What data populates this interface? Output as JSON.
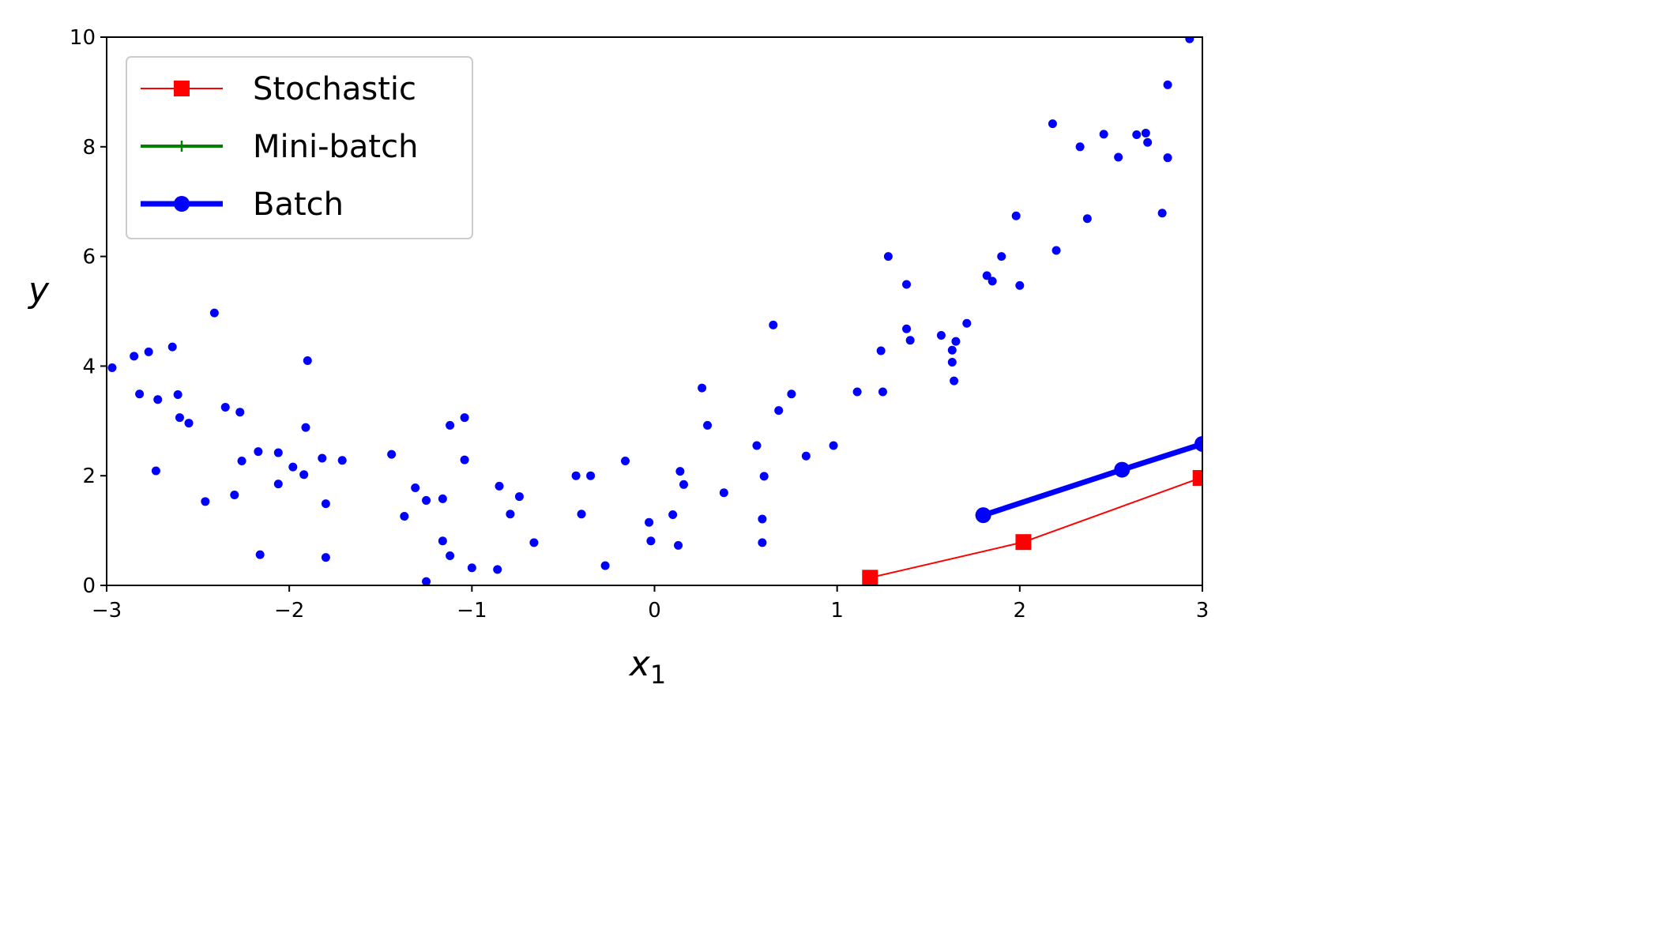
{
  "chart_data": {
    "type": "scatter",
    "title": "",
    "xlabel": "x",
    "xlabel_subscript": "1",
    "ylabel": "y",
    "xlim": [
      -3,
      3
    ],
    "ylim": [
      0,
      10
    ],
    "x_ticks": [
      -3,
      -2,
      -1,
      0,
      1,
      2,
      3
    ],
    "x_tick_labels": [
      "−3",
      "−2",
      "−1",
      "0",
      "1",
      "2",
      "3"
    ],
    "y_ticks": [
      0,
      2,
      4,
      6,
      8,
      10
    ],
    "y_tick_labels": [
      "0",
      "2",
      "4",
      "6",
      "8",
      "10"
    ],
    "grid": false,
    "legend_position": "upper-left",
    "scatter": {
      "color": "#0000ff",
      "points": [
        [
          -2.97,
          3.97
        ],
        [
          -2.85,
          4.18
        ],
        [
          -2.82,
          3.49
        ],
        [
          -2.77,
          4.26
        ],
        [
          -2.73,
          2.09
        ],
        [
          -2.72,
          3.39
        ],
        [
          -2.64,
          4.35
        ],
        [
          -2.61,
          3.48
        ],
        [
          -2.6,
          3.06
        ],
        [
          -2.55,
          2.96
        ],
        [
          -2.46,
          1.53
        ],
        [
          -2.41,
          4.97
        ],
        [
          -2.35,
          3.25
        ],
        [
          -2.3,
          1.65
        ],
        [
          -2.27,
          3.16
        ],
        [
          -2.26,
          2.27
        ],
        [
          -2.16,
          0.56
        ],
        [
          -2.17,
          2.44
        ],
        [
          -2.06,
          2.42
        ],
        [
          -2.06,
          1.85
        ],
        [
          -1.98,
          2.16
        ],
        [
          -1.92,
          2.02
        ],
        [
          -1.91,
          2.88
        ],
        [
          -1.9,
          4.1
        ],
        [
          -1.82,
          2.32
        ],
        [
          -1.8,
          1.49
        ],
        [
          -1.8,
          0.51
        ],
        [
          -1.71,
          2.28
        ],
        [
          -1.44,
          2.39
        ],
        [
          -1.37,
          1.26
        ],
        [
          -1.31,
          1.78
        ],
        [
          -1.25,
          1.55
        ],
        [
          -1.25,
          0.07
        ],
        [
          -1.16,
          1.58
        ],
        [
          -1.16,
          0.81
        ],
        [
          -1.12,
          2.92
        ],
        [
          -1.12,
          0.54
        ],
        [
          -1.04,
          3.06
        ],
        [
          -1.04,
          2.29
        ],
        [
          -1.0,
          0.32
        ],
        [
          -0.86,
          0.29
        ],
        [
          -0.85,
          1.81
        ],
        [
          -0.79,
          1.3
        ],
        [
          -0.74,
          1.62
        ],
        [
          -0.66,
          0.78
        ],
        [
          -0.43,
          2.0
        ],
        [
          -0.4,
          1.3
        ],
        [
          -0.35,
          2.0
        ],
        [
          -0.27,
          0.36
        ],
        [
          -0.16,
          2.27
        ],
        [
          -0.03,
          1.15
        ],
        [
          -0.02,
          0.81
        ],
        [
          0.1,
          1.29
        ],
        [
          0.13,
          0.73
        ],
        [
          0.14,
          2.08
        ],
        [
          0.16,
          1.84
        ],
        [
          0.26,
          3.6
        ],
        [
          0.29,
          2.92
        ],
        [
          0.38,
          1.69
        ],
        [
          0.56,
          2.55
        ],
        [
          0.59,
          1.21
        ],
        [
          0.59,
          0.78
        ],
        [
          0.6,
          1.99
        ],
        [
          0.65,
          4.75
        ],
        [
          0.68,
          3.19
        ],
        [
          0.75,
          3.49
        ],
        [
          0.83,
          2.36
        ],
        [
          0.98,
          2.55
        ],
        [
          1.11,
          3.53
        ],
        [
          1.24,
          4.28
        ],
        [
          1.25,
          3.53
        ],
        [
          1.28,
          6.0
        ],
        [
          1.38,
          4.68
        ],
        [
          1.38,
          5.49
        ],
        [
          1.4,
          4.47
        ],
        [
          1.57,
          4.56
        ],
        [
          1.63,
          4.29
        ],
        [
          1.63,
          4.07
        ],
        [
          1.64,
          3.73
        ],
        [
          1.65,
          4.45
        ],
        [
          1.71,
          4.78
        ],
        [
          1.82,
          5.65
        ],
        [
          1.85,
          5.55
        ],
        [
          1.9,
          6.0
        ],
        [
          1.98,
          6.74
        ],
        [
          2.0,
          5.47
        ],
        [
          2.18,
          8.42
        ],
        [
          2.2,
          6.11
        ],
        [
          2.33,
          8.0
        ],
        [
          2.37,
          6.69
        ],
        [
          2.46,
          8.23
        ],
        [
          2.54,
          7.81
        ],
        [
          2.64,
          8.22
        ],
        [
          2.69,
          8.25
        ],
        [
          2.7,
          8.08
        ],
        [
          2.78,
          6.79
        ],
        [
          2.81,
          7.8
        ],
        [
          2.81,
          9.13
        ],
        [
          2.93,
          9.97
        ]
      ]
    },
    "series": [
      {
        "name": "Stochastic",
        "color": "#ff0000",
        "marker": "square",
        "linewidth": "thin",
        "points": [
          [
            1.18,
            0.14
          ],
          [
            2.02,
            0.79
          ],
          [
            2.99,
            1.96
          ]
        ]
      },
      {
        "name": "Mini-batch",
        "color": "#008000",
        "marker": "plus",
        "linewidth": "medium",
        "points": []
      },
      {
        "name": "Batch",
        "color": "#0000ff",
        "marker": "circle",
        "linewidth": "thick",
        "points": [
          [
            1.8,
            1.28
          ],
          [
            2.56,
            2.11
          ],
          [
            3.0,
            2.58
          ]
        ]
      }
    ]
  }
}
